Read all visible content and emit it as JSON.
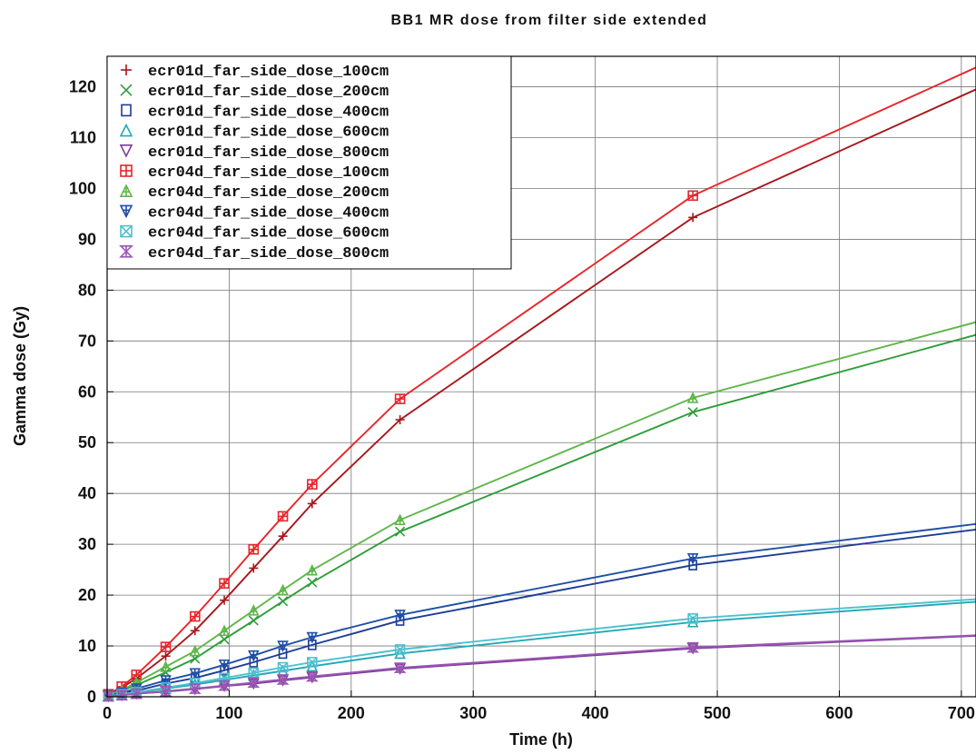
{
  "chart_data": {
    "type": "line",
    "title": "BB1 MR dose from filter side extended",
    "xlabel": "Time (h)",
    "ylabel": "Gamma dose (Gy)",
    "xlim": [
      0,
      712
    ],
    "ylim": [
      0,
      126
    ],
    "x_ticks": [
      0,
      100,
      200,
      300,
      400,
      500,
      600,
      700
    ],
    "y_ticks": [
      0,
      10,
      20,
      30,
      40,
      50,
      60,
      70,
      80,
      90,
      100,
      110,
      120
    ],
    "x_tick_labels": [
      "0",
      "100",
      "200",
      "300",
      "400",
      "500",
      "600",
      "700"
    ],
    "y_tick_labels": [
      "0",
      "10",
      "20",
      "30",
      "40",
      "50",
      "60",
      "70",
      "80",
      "90",
      "100",
      "110",
      "120"
    ],
    "grid": true,
    "legend_position": "top-left",
    "series": [
      {
        "name": "ecr01d_far_side_dose_100cm",
        "color": "#a8161a",
        "marker": "plus",
        "x": [
          1,
          12,
          24,
          48,
          72,
          96,
          120,
          144,
          168,
          240,
          480,
          712
        ],
        "y": [
          0.4,
          1.8,
          3.6,
          8.0,
          13.0,
          19.0,
          25.3,
          31.6,
          38.0,
          54.5,
          94.3,
          119.5
        ]
      },
      {
        "name": "ecr01d_far_side_dose_200cm",
        "color": "#2e9e3a",
        "marker": "x",
        "x": [
          1,
          12,
          24,
          48,
          72,
          96,
          120,
          144,
          168,
          240,
          480,
          712
        ],
        "y": [
          0.3,
          1.2,
          2.3,
          4.8,
          7.5,
          11.3,
          15.0,
          18.8,
          22.5,
          32.5,
          56.0,
          71.2
        ]
      },
      {
        "name": "ecr01d_far_side_dose_400cm",
        "color": "#1c3c96",
        "marker": "square",
        "x": [
          1,
          12,
          24,
          48,
          72,
          96,
          120,
          144,
          168,
          240,
          480,
          712
        ],
        "y": [
          0.2,
          0.6,
          1.2,
          2.6,
          3.7,
          5.2,
          6.8,
          8.5,
          10.2,
          15.0,
          25.9,
          32.9
        ]
      },
      {
        "name": "ecr01d_far_side_dose_600cm",
        "color": "#22a9b5",
        "marker": "triangle-up",
        "x": [
          1,
          12,
          24,
          48,
          72,
          96,
          120,
          144,
          168,
          240,
          480,
          712
        ],
        "y": [
          0.1,
          0.4,
          0.8,
          1.6,
          2.4,
          3.3,
          4.2,
          5.1,
          6.0,
          8.5,
          14.7,
          18.7
        ]
      },
      {
        "name": "ecr01d_far_side_dose_800cm",
        "color": "#7a3e98",
        "marker": "triangle-down",
        "x": [
          1,
          12,
          24,
          48,
          72,
          96,
          120,
          144,
          168,
          240,
          480,
          712
        ],
        "y": [
          0.1,
          0.3,
          0.6,
          1.0,
          1.5,
          2.1,
          2.6,
          3.2,
          3.8,
          5.5,
          9.5,
          12.0
        ]
      },
      {
        "name": "ecr04d_far_side_dose_100cm",
        "color": "#e8242a",
        "marker": "boxplus",
        "x": [
          1,
          12,
          24,
          48,
          72,
          96,
          120,
          144,
          168,
          240,
          480,
          712
        ],
        "y": [
          0.5,
          2.0,
          4.3,
          9.8,
          15.8,
          22.3,
          29.0,
          35.5,
          41.8,
          58.6,
          98.6,
          123.8
        ]
      },
      {
        "name": "ecr04d_far_side_dose_200cm",
        "color": "#5fb64a",
        "marker": "triangle-plus",
        "x": [
          1,
          12,
          24,
          48,
          72,
          96,
          120,
          144,
          168,
          240,
          480,
          712
        ],
        "y": [
          0.3,
          1.3,
          2.8,
          5.9,
          9.0,
          13.0,
          17.0,
          21.0,
          24.9,
          34.8,
          58.8,
          73.7
        ]
      },
      {
        "name": "ecr04d_far_side_dose_400cm",
        "color": "#1e4fa8",
        "marker": "triangle-down-plus",
        "x": [
          1,
          12,
          24,
          48,
          72,
          96,
          120,
          144,
          168,
          240,
          480,
          712
        ],
        "y": [
          0.2,
          0.8,
          1.6,
          3.2,
          4.6,
          6.3,
          8.1,
          10.0,
          11.7,
          16.1,
          27.2,
          34.0
        ]
      },
      {
        "name": "ecr04d_far_side_dose_600cm",
        "color": "#4fc0cf",
        "marker": "boxx",
        "x": [
          1,
          12,
          24,
          48,
          72,
          96,
          120,
          144,
          168,
          240,
          480,
          712
        ],
        "y": [
          0.1,
          0.5,
          0.9,
          1.8,
          2.7,
          3.7,
          4.7,
          5.8,
          6.8,
          9.3,
          15.4,
          19.2
        ]
      },
      {
        "name": "ecr04d_far_side_dose_800cm",
        "color": "#9c54b4",
        "marker": "hourglass",
        "x": [
          1,
          12,
          24,
          48,
          72,
          96,
          120,
          144,
          168,
          240,
          480,
          712
        ],
        "y": [
          0.1,
          0.3,
          0.6,
          1.1,
          1.6,
          2.2,
          2.8,
          3.4,
          4.0,
          5.7,
          9.7,
          12.1
        ]
      }
    ]
  }
}
